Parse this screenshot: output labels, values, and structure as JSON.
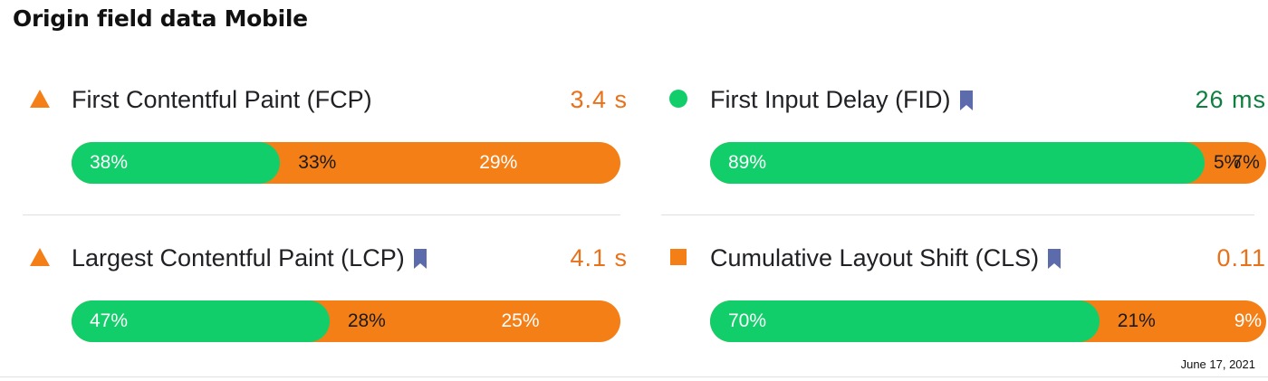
{
  "title": "Origin field data Mobile",
  "date": "June 17, 2021",
  "colors": {
    "good": "#12ce6a",
    "needs_improvement": "#f57f17",
    "value_orange": "#e8711a",
    "value_green": "#0d7f3f",
    "bookmark": "#5c6bab"
  },
  "metrics": [
    {
      "name": "First Contentful Paint (FCP)",
      "value": "3.4 s",
      "status": "triangle-icon",
      "bookmark": false,
      "distribution": {
        "good": "38%",
        "mid": "33%",
        "poor": "29%"
      },
      "good_pct": 38,
      "mid_pct": 33,
      "poor_pct": 29
    },
    {
      "name": "First Input Delay (FID)",
      "value": "26 ms",
      "status": "circle-icon",
      "bookmark": true,
      "distribution": {
        "good": "89%",
        "mid": "7%",
        "poor": "5%"
      },
      "good_pct": 89,
      "mid_pct": 7,
      "poor_pct": 5
    },
    {
      "name": "Largest Contentful Paint (LCP)",
      "value": "4.1 s",
      "status": "triangle-icon",
      "bookmark": true,
      "distribution": {
        "good": "47%",
        "mid": "28%",
        "poor": "25%"
      },
      "good_pct": 47,
      "mid_pct": 28,
      "poor_pct": 25
    },
    {
      "name": "Cumulative Layout Shift (CLS)",
      "value": "0.11",
      "status": "square-icon",
      "bookmark": true,
      "distribution": {
        "good": "70%",
        "mid": "21%",
        "poor": "9%"
      },
      "good_pct": 70,
      "mid_pct": 21,
      "poor_pct": 9
    }
  ]
}
